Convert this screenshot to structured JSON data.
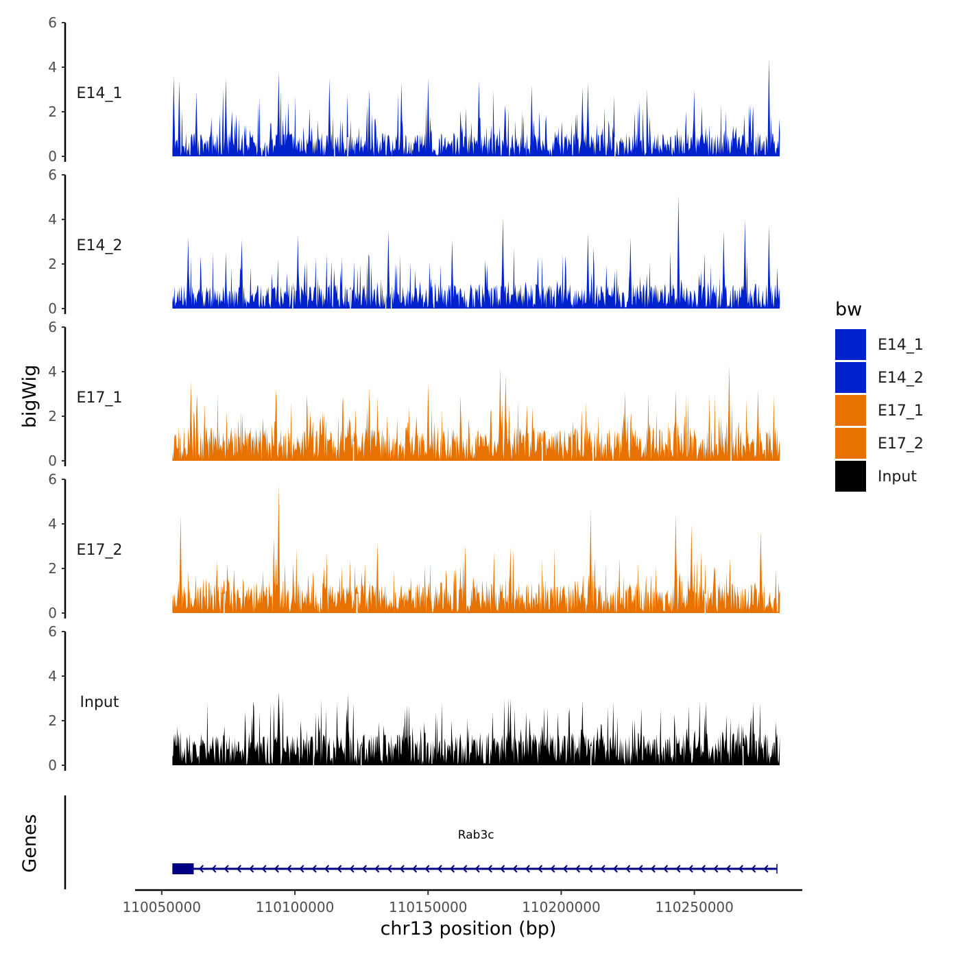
{
  "chart_data": {
    "type": "area",
    "chromosome": "chr13",
    "xlabel": "chr13 position (bp)",
    "xlim": [
      110040000,
      110290000
    ],
    "data_range": [
      110054000,
      110282000
    ],
    "x_ticks": [
      110050000,
      110100000,
      110150000,
      110200000,
      110250000
    ],
    "x_tick_labels": [
      "110050000",
      "110100000",
      "110150000",
      "110200000",
      "110250000"
    ],
    "ylabel": "bigWig",
    "ylim": [
      0,
      6
    ],
    "y_ticks": [
      0,
      2,
      4,
      6
    ],
    "y_tick_labels": [
      "0",
      "2",
      "4",
      "6"
    ],
    "series": [
      {
        "name": "E14_1",
        "color": "#0022CC",
        "seed": 11,
        "base": 0.75,
        "peaks": [
          {
            "x": 110054500,
            "y": 3.6
          },
          {
            "x": 110056500,
            "y": 3.4
          },
          {
            "x": 110063000,
            "y": 2.9
          },
          {
            "x": 110074000,
            "y": 3.5
          },
          {
            "x": 110094000,
            "y": 3.8
          },
          {
            "x": 110113000,
            "y": 3.5
          },
          {
            "x": 110128000,
            "y": 3.0
          },
          {
            "x": 110140000,
            "y": 3.3
          },
          {
            "x": 110150000,
            "y": 3.5
          },
          {
            "x": 110169000,
            "y": 3.4
          },
          {
            "x": 110189000,
            "y": 3.2
          },
          {
            "x": 110208000,
            "y": 3.1
          },
          {
            "x": 110210000,
            "y": 3.3
          },
          {
            "x": 110250000,
            "y": 3.0
          },
          {
            "x": 110278000,
            "y": 4.4
          }
        ]
      },
      {
        "name": "E14_2",
        "color": "#0022CC",
        "seed": 23,
        "base": 0.8,
        "peaks": [
          {
            "x": 110060000,
            "y": 3.2
          },
          {
            "x": 110080000,
            "y": 3.1
          },
          {
            "x": 110101000,
            "y": 3.3
          },
          {
            "x": 110135000,
            "y": 3.5
          },
          {
            "x": 110159000,
            "y": 3.1
          },
          {
            "x": 110178000,
            "y": 4.1
          },
          {
            "x": 110210000,
            "y": 3.4
          },
          {
            "x": 110226000,
            "y": 3.2
          },
          {
            "x": 110244000,
            "y": 5.1
          },
          {
            "x": 110261000,
            "y": 3.5
          },
          {
            "x": 110269000,
            "y": 4.0
          },
          {
            "x": 110278000,
            "y": 3.7
          }
        ]
      },
      {
        "name": "E17_1",
        "color": "#E87200",
        "seed": 37,
        "base": 1.1,
        "peaks": [
          {
            "x": 110061000,
            "y": 3.6
          },
          {
            "x": 110093000,
            "y": 3.2
          },
          {
            "x": 110128000,
            "y": 3.3
          },
          {
            "x": 110150000,
            "y": 3.5
          },
          {
            "x": 110177000,
            "y": 4.2
          },
          {
            "x": 110179000,
            "y": 3.9
          },
          {
            "x": 110224000,
            "y": 3.1
          },
          {
            "x": 110243000,
            "y": 3.2
          },
          {
            "x": 110263000,
            "y": 4.3
          },
          {
            "x": 110274000,
            "y": 3.2
          }
        ]
      },
      {
        "name": "E17_2",
        "color": "#E87200",
        "seed": 53,
        "base": 1.0,
        "peaks": [
          {
            "x": 110057000,
            "y": 4.4
          },
          {
            "x": 110094000,
            "y": 5.8
          },
          {
            "x": 110092000,
            "y": 3.4
          },
          {
            "x": 110131000,
            "y": 3.2
          },
          {
            "x": 110164000,
            "y": 3.1
          },
          {
            "x": 110181000,
            "y": 3.0
          },
          {
            "x": 110211000,
            "y": 4.6
          },
          {
            "x": 110243000,
            "y": 4.5
          },
          {
            "x": 110249000,
            "y": 4.0
          },
          {
            "x": 110275000,
            "y": 3.7
          }
        ]
      },
      {
        "name": "Input",
        "color": "#000000",
        "seed": 71,
        "base": 1.05,
        "peaks": [
          {
            "x": 110094000,
            "y": 3.3
          },
          {
            "x": 110120000,
            "y": 3.2
          },
          {
            "x": 110181000,
            "y": 3.0
          },
          {
            "x": 110208000,
            "y": 2.9
          },
          {
            "x": 110272000,
            "y": 2.8
          }
        ]
      }
    ],
    "legend": {
      "title": "bw",
      "position": "right",
      "entries": [
        {
          "label": "E14_1",
          "color": "#0022CC"
        },
        {
          "label": "E14_2",
          "color": "#0022CC"
        },
        {
          "label": "E17_1",
          "color": "#E87200"
        },
        {
          "label": "E17_2",
          "color": "#E87200"
        },
        {
          "label": "Input",
          "color": "#000000"
        }
      ]
    },
    "genes_track": {
      "label": "Genes",
      "genes": [
        {
          "name": "Rab3c",
          "start": 110054000,
          "end": 110281000,
          "strand": "-",
          "exon_start": 110054000,
          "exon_end": 110062000,
          "color": "#000080"
        }
      ]
    }
  }
}
